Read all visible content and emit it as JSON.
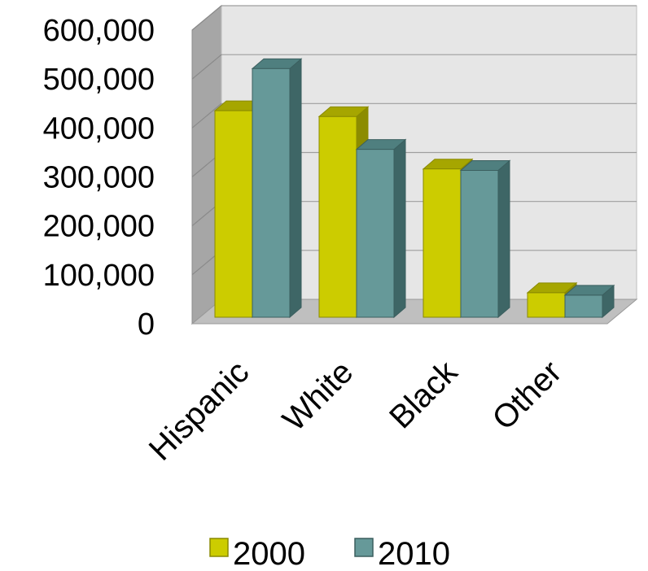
{
  "chart_data": {
    "type": "bar",
    "title": "",
    "xlabel": "",
    "ylabel": "",
    "categories": [
      "Hispanic",
      "White",
      "Black",
      "Other"
    ],
    "series": [
      {
        "name": "2000",
        "values": [
          422000,
          410000,
          303000,
          50000
        ]
      },
      {
        "name": "2010",
        "values": [
          508000,
          343000,
          300000,
          45000
        ]
      }
    ],
    "ylim": [
      0,
      600000
    ],
    "y_ticks": [
      "0",
      "100,000",
      "200,000",
      "300,000",
      "400,000",
      "500,000",
      "600,000"
    ],
    "grid": true,
    "three_d": true,
    "legend_position": "bottom",
    "colors": {
      "2000": {
        "front": "#CCCC00",
        "top": "#A6A600",
        "side": "#8C8C00",
        "stroke": "#8A8A00"
      },
      "2010": {
        "front": "#669999",
        "top": "#4F7F7F",
        "side": "#3E6666",
        "stroke": "#3B5F5F"
      },
      "back_wall": "#E6E6E6",
      "side_wall": "#A6A6A6",
      "floor": "#BFBFBF"
    }
  }
}
